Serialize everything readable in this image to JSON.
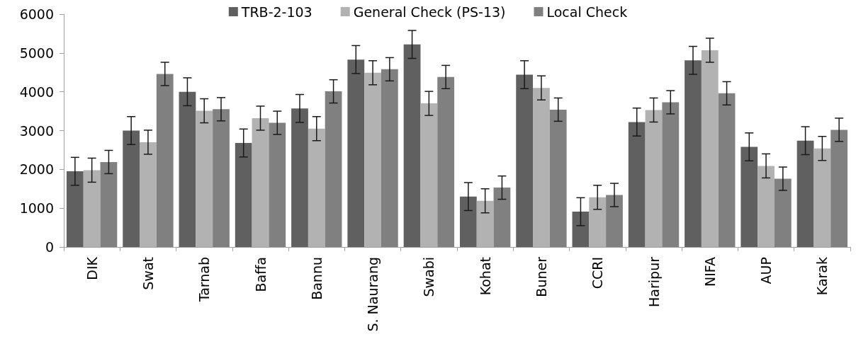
{
  "chart_data": {
    "type": "bar",
    "categories": [
      "DIK",
      "Swat",
      "Tarnab",
      "Baffa",
      "Bannu",
      "S. Naurang",
      "Swabi",
      "Kohat",
      "Buner",
      "CCRI",
      "Haripur",
      "NIFA",
      "AUP",
      "Karak"
    ],
    "series": [
      {
        "name": "TRB-2-103",
        "color": "#606060",
        "values": [
          1950,
          3000,
          4000,
          2680,
          3570,
          4830,
          5220,
          1300,
          4440,
          910,
          3220,
          4810,
          2580,
          2740
        ],
        "errors": [
          360,
          360,
          360,
          360,
          360,
          360,
          360,
          360,
          360,
          360,
          360,
          360,
          360,
          360
        ]
      },
      {
        "name": "General Check (PS-13)",
        "color": "#b2b2b2",
        "values": [
          1980,
          2700,
          3510,
          3320,
          3050,
          4490,
          3700,
          1190,
          4100,
          1280,
          3530,
          5070,
          2090,
          2540
        ],
        "errors": [
          310,
          310,
          310,
          310,
          310,
          310,
          310,
          310,
          310,
          310,
          310,
          310,
          310,
          310
        ]
      },
      {
        "name": "Local Check",
        "color": "#808080",
        "values": [
          2190,
          4460,
          3550,
          3200,
          4010,
          4580,
          4380,
          1530,
          3540,
          1340,
          3730,
          3960,
          1760,
          3020
        ],
        "errors": [
          300,
          300,
          300,
          300,
          300,
          300,
          300,
          300,
          300,
          300,
          300,
          300,
          300,
          300
        ]
      }
    ],
    "ylim": [
      0,
      6000
    ],
    "yticks": [
      0,
      1000,
      2000,
      3000,
      4000,
      5000,
      6000
    ],
    "grid": false,
    "legend": "top"
  }
}
